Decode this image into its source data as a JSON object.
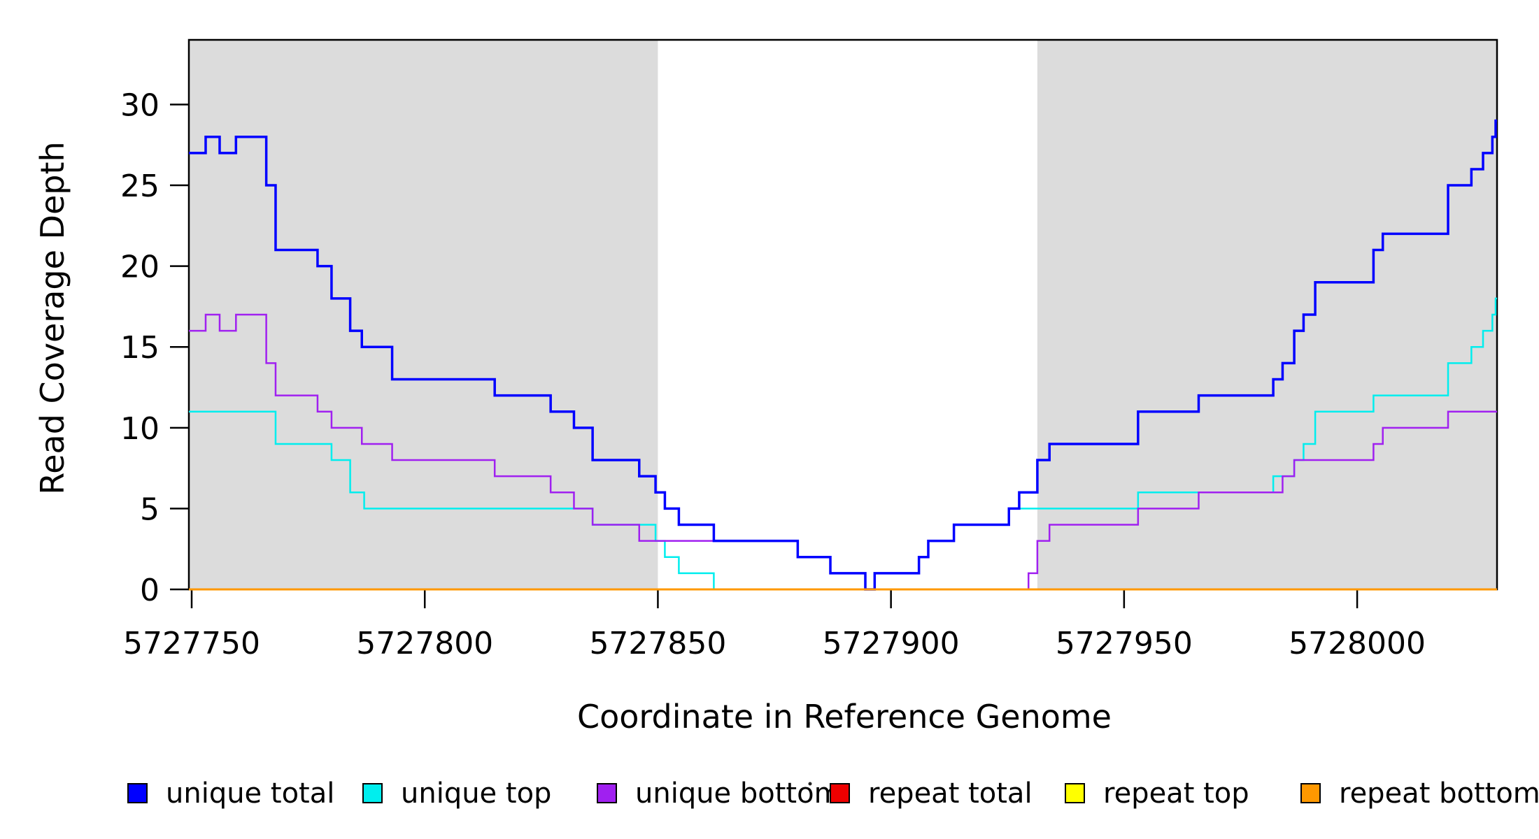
{
  "figure": {
    "background": "#ffffff"
  },
  "chart_data": {
    "type": "line",
    "subtype": "step-after",
    "title": "",
    "xlabel": "Coordinate in Reference Genome",
    "ylabel": "Read Coverage Depth",
    "xlim": [
      5727749.4,
      5728030
    ],
    "ylim": [
      0,
      34
    ],
    "x_ticks": [
      5727750,
      5727800,
      5727850,
      5727900,
      5727950,
      5728000
    ],
    "y_ticks": [
      0,
      5,
      10,
      15,
      20,
      25,
      30
    ],
    "grid": false,
    "box_color": "#000000",
    "shaded_regions": [
      {
        "x0": 5727749.4,
        "x1": 5727850,
        "color": "#DCDCDC"
      },
      {
        "x0": 5727931.4,
        "x1": 5728030,
        "color": "#DCDCDC"
      }
    ],
    "draw_order": [
      "unique top",
      "unique bottom",
      "unique total",
      "repeat total",
      "repeat top",
      "repeat bottom"
    ],
    "series": [
      {
        "name": "unique total",
        "color": "#0000FF",
        "width": 3.5,
        "points": [
          [
            5727749.4,
            27
          ],
          [
            5727753,
            28
          ],
          [
            5727756,
            27
          ],
          [
            5727759.5,
            28
          ],
          [
            5727766,
            25
          ],
          [
            5727768,
            21
          ],
          [
            5727777,
            20
          ],
          [
            5727780,
            18
          ],
          [
            5727784,
            16
          ],
          [
            5727786.5,
            15
          ],
          [
            5727793,
            13
          ],
          [
            5727815,
            12
          ],
          [
            5727827,
            11
          ],
          [
            5727832,
            10
          ],
          [
            5727836,
            8
          ],
          [
            5727846,
            7
          ],
          [
            5727849.5,
            6
          ],
          [
            5727851.5,
            5
          ],
          [
            5727854.5,
            4
          ],
          [
            5727862,
            3
          ],
          [
            5727880,
            2
          ],
          [
            5727887,
            1
          ],
          [
            5727894.5,
            0
          ],
          [
            5727896.5,
            1
          ],
          [
            5727906,
            2
          ],
          [
            5727908,
            3
          ],
          [
            5727913.5,
            4
          ],
          [
            5727925.3,
            5
          ],
          [
            5727927.5,
            6
          ],
          [
            5727931.4,
            8
          ],
          [
            5727934,
            9
          ],
          [
            5727953,
            11
          ],
          [
            5727966,
            12
          ],
          [
            5727982,
            13
          ],
          [
            5727984,
            14
          ],
          [
            5727986.5,
            16
          ],
          [
            5727988.5,
            17
          ],
          [
            5727991,
            19
          ],
          [
            5728003.5,
            21
          ],
          [
            5728005.5,
            22
          ],
          [
            5728019.5,
            25
          ],
          [
            5728024.5,
            26
          ],
          [
            5728027,
            27
          ],
          [
            5728029,
            28
          ],
          [
            5728029.7,
            29
          ]
        ]
      },
      {
        "name": "unique top",
        "color": "#00EEEE",
        "width": 2.5,
        "points": [
          [
            5727749.4,
            11
          ],
          [
            5727768,
            9
          ],
          [
            5727780,
            8
          ],
          [
            5727784,
            6
          ],
          [
            5727787,
            5
          ],
          [
            5727836,
            4
          ],
          [
            5727849.5,
            3
          ],
          [
            5727851.5,
            2
          ],
          [
            5727854.5,
            1
          ],
          [
            5727862,
            0
          ],
          [
            5727896.5,
            1
          ],
          [
            5727906,
            2
          ],
          [
            5727908,
            3
          ],
          [
            5727913.5,
            4
          ],
          [
            5727925.3,
            5
          ],
          [
            5727953,
            6
          ],
          [
            5727982,
            7
          ],
          [
            5727986.5,
            8
          ],
          [
            5727988.5,
            9
          ],
          [
            5727991,
            11
          ],
          [
            5728003.5,
            12
          ],
          [
            5728019.5,
            14
          ],
          [
            5728024.5,
            15
          ],
          [
            5728027,
            16
          ],
          [
            5728029,
            17
          ],
          [
            5728029.7,
            18
          ]
        ]
      },
      {
        "name": "unique bottom",
        "color": "#A020F0",
        "width": 2.5,
        "points": [
          [
            5727749.4,
            16
          ],
          [
            5727753,
            17
          ],
          [
            5727756,
            16
          ],
          [
            5727759.5,
            17
          ],
          [
            5727766,
            14
          ],
          [
            5727768,
            12
          ],
          [
            5727777,
            11
          ],
          [
            5727780,
            10
          ],
          [
            5727786.5,
            9
          ],
          [
            5727793,
            8
          ],
          [
            5727815,
            7
          ],
          [
            5727827,
            6
          ],
          [
            5727832,
            5
          ],
          [
            5727836,
            4
          ],
          [
            5727846,
            3
          ],
          [
            5727880,
            2
          ],
          [
            5727887,
            1
          ],
          [
            5727894.5,
            0
          ],
          [
            5727929.5,
            1
          ],
          [
            5727931.4,
            3
          ],
          [
            5727934,
            4
          ],
          [
            5727953,
            5
          ],
          [
            5727966,
            6
          ],
          [
            5727984,
            7
          ],
          [
            5727986.5,
            8
          ],
          [
            5728003.5,
            9
          ],
          [
            5728005.5,
            10
          ],
          [
            5728019.5,
            11
          ]
        ]
      },
      {
        "name": "repeat total",
        "color": "#EE0000",
        "width": 2,
        "points": [
          [
            5727749.4,
            0
          ]
        ]
      },
      {
        "name": "repeat top",
        "color": "#FFFF00",
        "width": 2,
        "points": [
          [
            5727749.4,
            0
          ]
        ]
      },
      {
        "name": "repeat bottom",
        "color": "#FF9800",
        "width": 3,
        "points": [
          [
            5727749.4,
            0
          ]
        ]
      }
    ],
    "legend": {
      "position": "bottom",
      "items": [
        {
          "label": "unique total",
          "color": "#0000FF"
        },
        {
          "label": "unique top",
          "color": "#00EEEE"
        },
        {
          "label": "unique bottom",
          "color": "#A020F0"
        },
        {
          "label": "repeat total",
          "color": "#EE0000"
        },
        {
          "label": "repeat top",
          "color": "#FFFF00"
        },
        {
          "label": "repeat bottom",
          "color": "#FF9800"
        }
      ],
      "stray_mark": true
    }
  }
}
